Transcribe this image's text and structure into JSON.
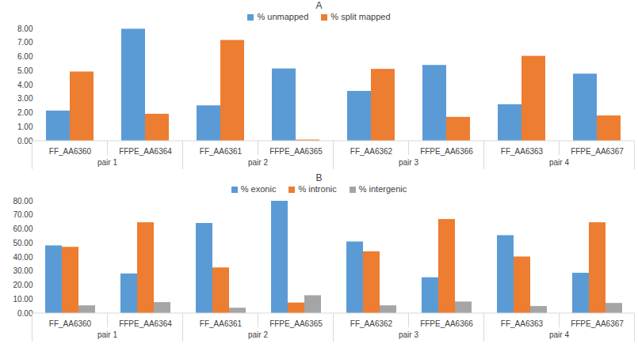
{
  "chart_data": [
    {
      "type": "bar",
      "title": "A",
      "categories": [
        "FF_AA6360",
        "FFPE_AA6364",
        "FF_AA6361",
        "FFPE_AA6365",
        "FF_AA6362",
        "FFPE_AA6366",
        "FF_AA6363",
        "FFPE_AA6367"
      ],
      "group_labels": [
        "pair 1",
        "pair 2",
        "pair 3",
        "pair 4"
      ],
      "series": [
        {
          "name": "% unmapped",
          "color": "#5b9bd5",
          "values": [
            2.15,
            7.98,
            2.52,
            5.15,
            3.55,
            5.4,
            2.6,
            4.78
          ]
        },
        {
          "name": "% split mapped",
          "color": "#ed7d31",
          "values": [
            4.93,
            1.92,
            7.18,
            0.08,
            5.12,
            1.7,
            6.05,
            1.8
          ]
        }
      ],
      "ylim": [
        0,
        8
      ],
      "yticks": [
        {
          "value": 0,
          "label": "0.00"
        },
        {
          "value": 1,
          "label": "1.00"
        },
        {
          "value": 2,
          "label": "2.00"
        },
        {
          "value": 3,
          "label": "3.00"
        },
        {
          "value": 4,
          "label": "4.00"
        },
        {
          "value": 5,
          "label": "5.00"
        },
        {
          "value": 6,
          "label": "6.00"
        },
        {
          "value": 7,
          "label": "7.00"
        },
        {
          "value": 8,
          "label": "8.00"
        }
      ],
      "grid": false,
      "legend": "top"
    },
    {
      "type": "bar",
      "title": "B",
      "categories": [
        "FF_AA6360",
        "FFPE_AA6364",
        "FF_AA6361",
        "FFPE_AA6365",
        "FF_AA6362",
        "FFPE_AA6366",
        "FF_AA6363",
        "FFPE_AA6367"
      ],
      "group_labels": [
        "pair 1",
        "pair 2",
        "pair 3",
        "pair 4"
      ],
      "series": [
        {
          "name": "% exonic",
          "color": "#5b9bd5",
          "values": [
            48.2,
            28.2,
            64.2,
            80.0,
            51.0,
            25.5,
            55.5,
            28.7
          ]
        },
        {
          "name": "% intronic",
          "color": "#ed7d31",
          "values": [
            47.2,
            64.7,
            32.5,
            7.5,
            44.0,
            67.0,
            40.3,
            64.7
          ]
        },
        {
          "name": "% intergenic",
          "color": "#a5a5a5",
          "values": [
            5.5,
            7.8,
            3.8,
            12.7,
            5.5,
            8.2,
            5.0,
            7.2
          ]
        }
      ],
      "ylim": [
        0,
        80
      ],
      "yticks": [
        {
          "value": 0,
          "label": "0.00"
        },
        {
          "value": 10,
          "label": "10.00"
        },
        {
          "value": 20,
          "label": "20.00"
        },
        {
          "value": 30,
          "label": "30.00"
        },
        {
          "value": 40,
          "label": "40.00"
        },
        {
          "value": 50,
          "label": "50.00"
        },
        {
          "value": 60,
          "label": "60.00"
        },
        {
          "value": 70,
          "label": "70.00"
        },
        {
          "value": 80,
          "label": "80.00"
        }
      ],
      "grid": false,
      "legend": "top"
    }
  ]
}
